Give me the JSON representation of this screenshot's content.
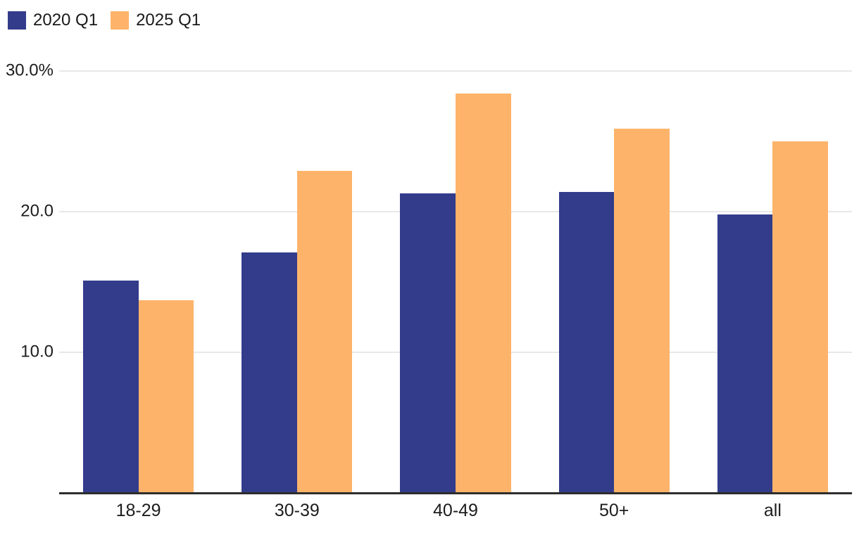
{
  "legend": {
    "items": [
      {
        "label": "2020 Q1",
        "color": "#333c8b"
      },
      {
        "label": "2025 Q1",
        "color": "#fdb46a"
      }
    ]
  },
  "chart_data": {
    "type": "bar",
    "title": "",
    "xlabel": "",
    "ylabel": "",
    "categories": [
      "18-29",
      "30-39",
      "40-49",
      "50+",
      "all"
    ],
    "series": [
      {
        "name": "2020 Q1",
        "color": "#333c8b",
        "values": [
          15.1,
          17.1,
          21.3,
          21.4,
          19.8
        ]
      },
      {
        "name": "2025 Q1",
        "color": "#fdb46a",
        "values": [
          13.7,
          22.9,
          28.4,
          25.9,
          25.0
        ]
      }
    ],
    "ylim": [
      0,
      30
    ],
    "yticks": [
      {
        "value": 10,
        "label": "10.0"
      },
      {
        "value": 20,
        "label": "20.0"
      },
      {
        "value": 30,
        "label": "30.0%"
      }
    ],
    "grid": true,
    "legend_position": "top-left",
    "axis_line_color": "#2d2d2d",
    "gridline_color": "#e8e8e8",
    "text_color": "#1d1d1d"
  }
}
